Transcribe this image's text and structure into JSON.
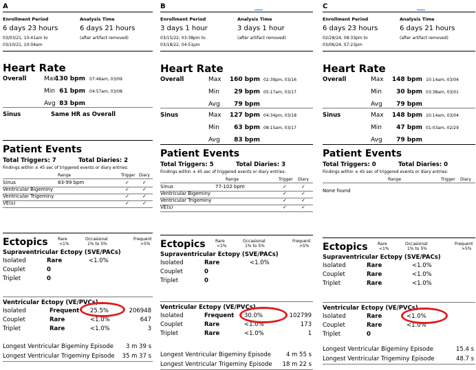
{
  "panels": [
    {
      "letter": "A",
      "enrollment_label": "Enrollment Period",
      "enrollment_value": "6 days 23 hours",
      "enrollment_range_1": "03/03/21, 10:41am to",
      "enrollment_range_2": "03/10/21, 10:04am",
      "analysis_label": "Analysis Time",
      "analysis_value": "6 days 21 hours",
      "analysis_note": "(after artifact removed)",
      "hr_title": "Heart Rate",
      "overall": {
        "label": "Overall",
        "rows": [
          {
            "k": "Max",
            "v": "130 bpm",
            "t": "07:46am, 03/09"
          },
          {
            "k": "Min",
            "v": "61 bpm",
            "t": "04:57am, 03/08"
          },
          {
            "k": "Avg",
            "v": "83 bpm",
            "t": ""
          }
        ]
      },
      "sinus_label": "Sinus",
      "sinus_note": "Same HR as Overall",
      "sinus_rows": [],
      "events_title": "Patient Events",
      "triggers": "Total Triggers: 7",
      "diaries": "Total Diaries: 2",
      "findings": "Findings within ± 45 sec of triggered events or diary entries:",
      "col_range": "Range",
      "col_trigger": "Trigger",
      "col_diary": "Diary",
      "event_rows": [
        {
          "name": "Sinus",
          "range": "83-99 bpm",
          "trig": "✓",
          "diary": "✓"
        },
        {
          "name": "Ventricular Bigeminy",
          "range": "",
          "trig": "✓",
          "diary": "✓"
        },
        {
          "name": "Ventricular Trigeminy",
          "range": "",
          "trig": "✓",
          "diary": "✓"
        },
        {
          "name": "VE(s)",
          "range": "",
          "trig": "✓",
          "diary": "✓"
        }
      ],
      "none_found": "",
      "ectopics_title": "Ectopics",
      "leg_rare_1": "Rare",
      "leg_rare_2": "<1%",
      "leg_occ_1": "Occasional",
      "leg_occ_2": "1% to 5%",
      "leg_freq_1": "Frequent",
      "leg_freq_2": ">5%",
      "sve_title": "Supraventricular Ectopy (SVE/PACs)",
      "sve_rows": [
        {
          "k": "Isolated",
          "c": "Rare",
          "p": "<1.0%",
          "n": ""
        },
        {
          "k": "Couplet",
          "c": "0",
          "p": "",
          "n": ""
        },
        {
          "k": "Triplet",
          "c": "0",
          "p": "",
          "n": ""
        }
      ],
      "ve_title": "Ventricular Ectopy (VE/PVCs)",
      "ve_rows": [
        {
          "k": "Isolated",
          "c": "Frequent",
          "p": "25.5%",
          "n": "206948"
        },
        {
          "k": "Couplet",
          "c": "Rare",
          "p": "<1.0%",
          "n": "647"
        },
        {
          "k": "Triplet",
          "c": "Rare",
          "p": "<1.0%",
          "n": "3"
        }
      ],
      "bigeminy_label": "Longest Ventricular Bigeminy Episode",
      "bigeminy_value": "3 m 39 s",
      "trigeminy_label": "Longest Ventricular Trigeminy Episode",
      "trigeminy_value": "35 m 37 s"
    },
    {
      "letter": "B",
      "enrollment_label": "Enrollment Period",
      "enrollment_value": "3 days 1 hour",
      "enrollment_range_1": "03/15/22, 03:38pm to",
      "enrollment_range_2": "03/18/22, 04:51pm",
      "analysis_label": "Analysis Time",
      "analysis_value": "3 days 1 hour",
      "analysis_note": "(after artifact removed)",
      "hr_title": "Heart Rate",
      "overall": {
        "label": "Overall",
        "rows": [
          {
            "k": "Max",
            "v": "160 bpm",
            "t": "02:39pm, 03/16"
          },
          {
            "k": "Min",
            "v": "29 bpm",
            "t": "05:17am, 03/17"
          },
          {
            "k": "Avg",
            "v": "79 bpm",
            "t": ""
          }
        ]
      },
      "sinus_label": "Sinus",
      "sinus_note": "",
      "sinus_rows": [
        {
          "k": "Max",
          "v": "127 bpm",
          "t": "04:34pm, 03/18"
        },
        {
          "k": "Min",
          "v": "63 bpm",
          "t": "08:15am, 03/17"
        },
        {
          "k": "Avg",
          "v": "83 bpm",
          "t": ""
        }
      ],
      "events_title": "Patient Events",
      "triggers": "Total Triggers: 5",
      "diaries": "Total Diaries: 3",
      "findings": "Findings within ± 45 sec of triggered events or diary entries:",
      "col_range": "Range",
      "col_trigger": "Trigger",
      "col_diary": "Diary",
      "event_rows": [
        {
          "name": "Sinus",
          "range": "77-102 bpm",
          "trig": "✓",
          "diary": "✓"
        },
        {
          "name": "Ventricular Bigeminy",
          "range": "",
          "trig": "✓",
          "diary": "✓"
        },
        {
          "name": "Ventricular Trigeminy",
          "range": "",
          "trig": "✓",
          "diary": "✓"
        },
        {
          "name": "VE(s)",
          "range": "",
          "trig": "✓",
          "diary": "✓"
        }
      ],
      "none_found": "",
      "ectopics_title": "Ectopics",
      "leg_rare_1": "Rare",
      "leg_rare_2": "<1%",
      "leg_occ_1": "Occasional",
      "leg_occ_2": "1% to 5%",
      "leg_freq_1": "Frequent",
      "leg_freq_2": ">5%",
      "sve_title": "Supraventricular Ectopy (SVE/PACs)",
      "sve_rows": [
        {
          "k": "Isolated",
          "c": "Rare",
          "p": "<1.0%",
          "n": ""
        },
        {
          "k": "Couplet",
          "c": "0",
          "p": "",
          "n": ""
        },
        {
          "k": "Triplet",
          "c": "0",
          "p": "",
          "n": ""
        }
      ],
      "ve_title": "Ventricular Ectopy (VE/PVCs)",
      "ve_rows": [
        {
          "k": "Isolated",
          "c": "Frequent",
          "p": "30.0%",
          "n": "102799"
        },
        {
          "k": "Couplet",
          "c": "Rare",
          "p": "<1.0%",
          "n": "173"
        },
        {
          "k": "Triplet",
          "c": "Rare",
          "p": "<1.0%",
          "n": "1"
        }
      ],
      "bigeminy_label": "Longest Ventricular Bigeminy Episode",
      "bigeminy_value": "4 m 55 s",
      "trigeminy_label": "Longest Ventricular Trigeminy Episode",
      "trigeminy_value": "18 m 22 s"
    },
    {
      "letter": "C",
      "enrollment_label": "Enrollment Period",
      "enrollment_value": "6 days 23 hours",
      "enrollment_range_1": "02/28/24, 08:33pm to",
      "enrollment_range_2": "03/06/24, 07:23pm",
      "analysis_label": "Analysis Time",
      "analysis_value": "6 days 21 hours",
      "analysis_note": "(after artifact removed)",
      "hr_title": "Heart Rate",
      "overall": {
        "label": "Overall",
        "rows": [
          {
            "k": "Max",
            "v": "148 bpm",
            "t": "10:14am, 03/04"
          },
          {
            "k": "Min",
            "v": "30 bpm",
            "t": "03:38am, 03/01"
          },
          {
            "k": "Avg",
            "v": "79 bpm",
            "t": ""
          }
        ]
      },
      "sinus_label": "Sinus",
      "sinus_note": "",
      "sinus_rows": [
        {
          "k": "Max",
          "v": "148 bpm",
          "t": "10:14am, 03/04"
        },
        {
          "k": "Min",
          "v": "47 bpm",
          "t": "01:03am, 02/29"
        },
        {
          "k": "Avg",
          "v": "79 bpm",
          "t": ""
        }
      ],
      "events_title": "Patient Events",
      "triggers": "Total Triggers: 0",
      "diaries": "Total Diaries: 0",
      "findings": "Findings within ± 45 sec of triggered events or diary entries:",
      "col_range": "Range",
      "col_trigger": "Trigger",
      "col_diary": "Diary",
      "event_rows": [],
      "none_found": "None found",
      "ectopics_title": "Ectopics",
      "leg_rare_1": "Rare",
      "leg_rare_2": "<1%",
      "leg_occ_1": "Occasional",
      "leg_occ_2": "1% to 5%",
      "leg_freq_1": "Frequent",
      "leg_freq_2": ">5%",
      "sve_title": "Supraventricular Ectopy (SVE/PACs)",
      "sve_rows": [
        {
          "k": "Isolated",
          "c": "Rare",
          "p": "<1.0%",
          "n": ""
        },
        {
          "k": "Couplet",
          "c": "Rare",
          "p": "<1.0%",
          "n": ""
        },
        {
          "k": "Triplet",
          "c": "Rare",
          "p": "<1.0%",
          "n": ""
        }
      ],
      "ve_title": "Ventricular Ectopy (VE/PVCs)",
      "ve_rows": [
        {
          "k": "Isolated",
          "c": "Rare",
          "p": "<1.0%",
          "n": ""
        },
        {
          "k": "Couplet",
          "c": "Rare",
          "p": "<1.0%",
          "n": ""
        },
        {
          "k": "Triplet",
          "c": "0",
          "p": "",
          "n": ""
        }
      ],
      "bigeminy_label": "Longest Ventricular Bigeminy Episode",
      "bigeminy_value": "15.4 s",
      "trigeminy_label": "Longest Ventricular Trigeminy Episode",
      "trigeminy_value": "48.7 s"
    }
  ],
  "colors": {
    "highlight_oval": "#e01b1b",
    "link_mark": "#1a73e8"
  }
}
